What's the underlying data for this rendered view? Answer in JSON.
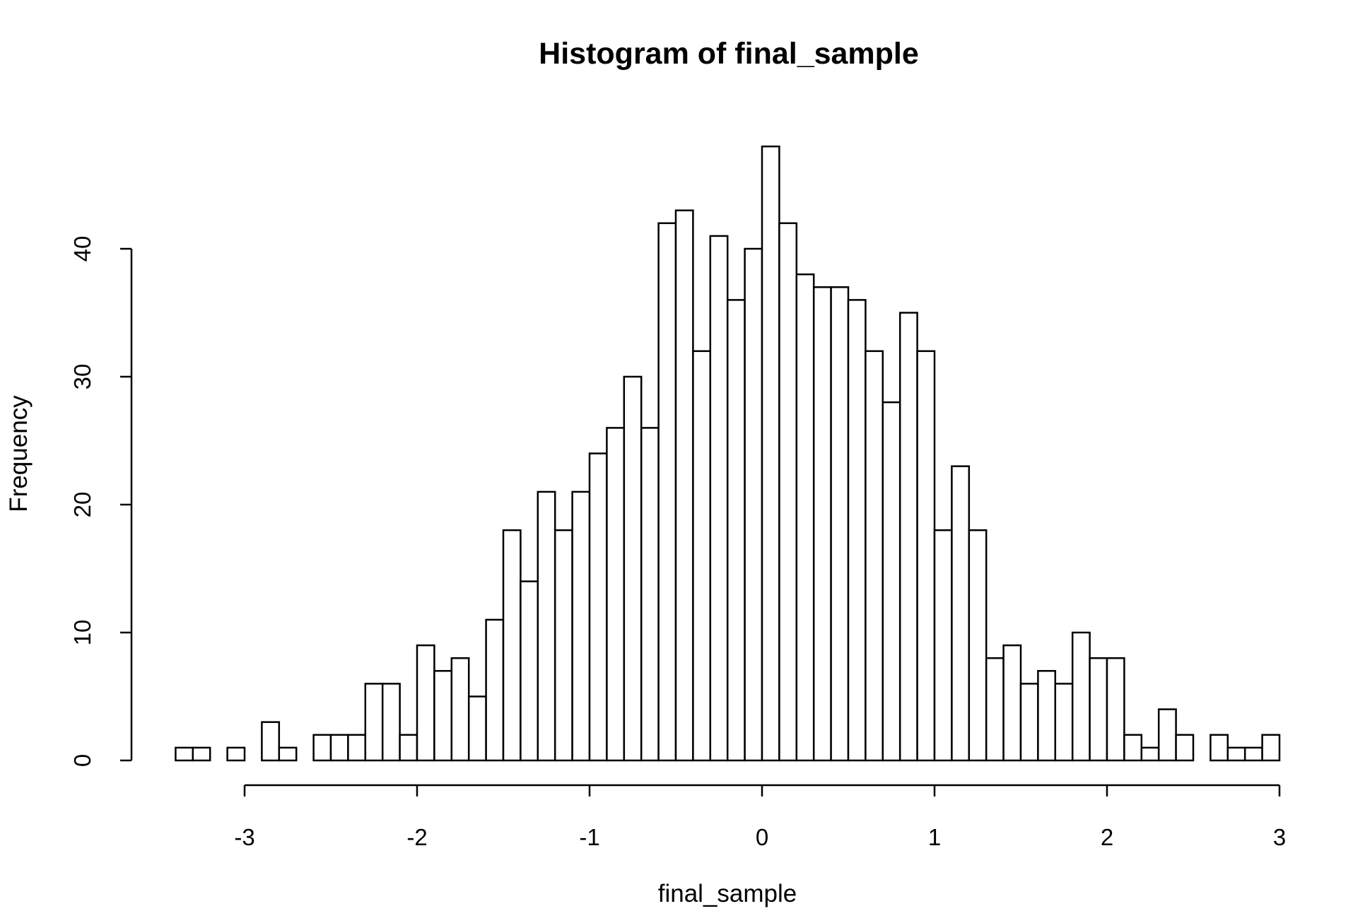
{
  "chart_data": {
    "type": "bar",
    "title": "Histogram of final_sample",
    "xlabel": "final_sample",
    "ylabel": "Frequency",
    "bin_width": 0.1,
    "bins_start": -3.4,
    "bins_end": 3.0,
    "values": [
      1,
      1,
      0,
      1,
      0,
      3,
      1,
      0,
      2,
      2,
      2,
      6,
      6,
      2,
      9,
      7,
      8,
      5,
      11,
      18,
      14,
      21,
      18,
      21,
      24,
      26,
      30,
      26,
      42,
      43,
      32,
      41,
      36,
      40,
      48,
      42,
      38,
      37,
      37,
      36,
      32,
      28,
      35,
      32,
      18,
      23,
      18,
      8,
      9,
      6,
      7,
      6,
      10,
      8,
      8,
      2,
      1,
      4,
      2,
      0,
      2,
      1,
      1,
      2
    ],
    "xlim": [
      -3.4,
      3.0
    ],
    "ylim": [
      0,
      48
    ],
    "x_ticks": [
      -3,
      -2,
      -1,
      0,
      1,
      2,
      3
    ],
    "y_ticks": [
      0,
      10,
      20,
      30,
      40
    ],
    "x_tick_labels": [
      "-3",
      "-2",
      "-1",
      "0",
      "1",
      "2",
      "3"
    ],
    "y_tick_labels": [
      "0",
      "10",
      "20",
      "30",
      "40"
    ],
    "grid": false,
    "legend": "none"
  }
}
